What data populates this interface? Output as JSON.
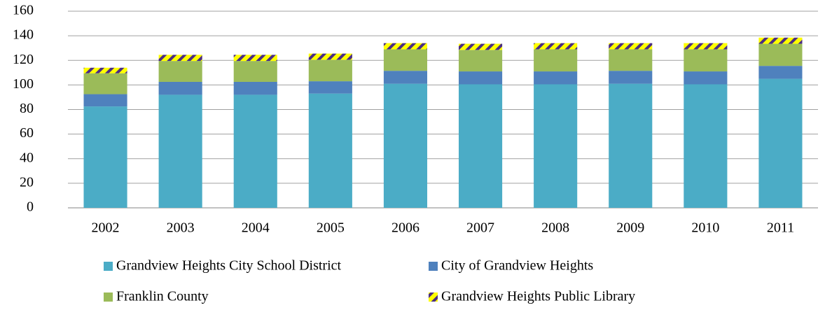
{
  "chart_data": {
    "type": "stacked_bar",
    "categories": [
      "2002",
      "2003",
      "2004",
      "2005",
      "2006",
      "2007",
      "2008",
      "2009",
      "2010",
      "2011"
    ],
    "series": [
      {
        "name": "Grandview Heights City School District",
        "color": "#4bacc6",
        "values": [
          82.5,
          92,
          92,
          93,
          101,
          100.5,
          100.5,
          101,
          100.5,
          105
        ]
      },
      {
        "name": "City of Grandview Heights",
        "color": "#4f81bd",
        "values": [
          10,
          10.5,
          10.5,
          10,
          10.5,
          10.5,
          10.5,
          10.5,
          10.5,
          10.5
        ]
      },
      {
        "name": "Franklin County",
        "color": "#9bbb59",
        "values": [
          17,
          17,
          17,
          17.5,
          17.5,
          17.5,
          18,
          17.5,
          18,
          18
        ]
      },
      {
        "name": "Grandview Heights Public Library",
        "color": "#ffff00",
        "values": [
          4.5,
          5,
          5,
          5,
          5,
          5,
          5,
          5,
          5,
          5
        ]
      }
    ],
    "ylim": [
      0,
      160
    ],
    "yticks": [
      0,
      20,
      40,
      60,
      80,
      100,
      120,
      140,
      160
    ],
    "grid": true
  }
}
